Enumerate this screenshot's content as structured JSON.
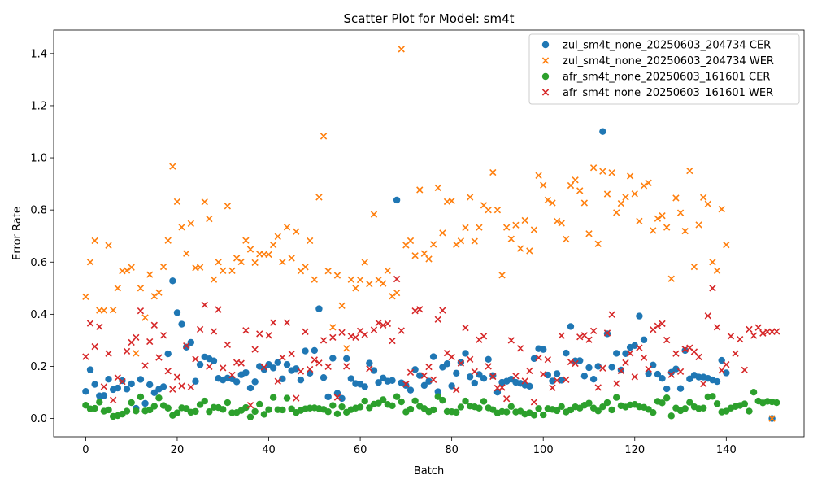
{
  "chart_data": {
    "type": "scatter",
    "title": "Scatter Plot for Model: sm4t",
    "xlabel": "Batch",
    "ylabel": "Error Rate",
    "xlim": [
      -7,
      157
    ],
    "ylim": [
      -0.07,
      1.49
    ],
    "xticks": [
      0,
      20,
      40,
      60,
      80,
      100,
      120,
      140
    ],
    "yticks": [
      0.0,
      0.2,
      0.4,
      0.6,
      0.8,
      1.0,
      1.2,
      1.4
    ],
    "grid": false,
    "legend_position": "top-right",
    "series": [
      {
        "name": "zul_sm4t_none_20250603_204734 CER",
        "color": "#1f77b4",
        "marker": "circle",
        "values": [
          0.104,
          0.187,
          0.131,
          0.087,
          0.088,
          0.151,
          0.111,
          0.117,
          0.145,
          0.113,
          0.133,
          0.039,
          0.15,
          0.058,
          0.13,
          0.099,
          0.113,
          0.122,
          0.248,
          0.528,
          0.406,
          0.362,
          0.274,
          0.292,
          0.143,
          0.207,
          0.236,
          0.229,
          0.221,
          0.154,
          0.148,
          0.155,
          0.152,
          0.141,
          0.168,
          0.176,
          0.117,
          0.141,
          0.2,
          0.188,
          0.207,
          0.194,
          0.215,
          0.152,
          0.207,
          0.184,
          0.191,
          0.148,
          0.259,
          0.174,
          0.261,
          0.421,
          0.157,
          0.083,
          0.231,
          0.097,
          0.077,
          0.23,
          0.153,
          0.134,
          0.132,
          0.122,
          0.212,
          0.184,
          0.138,
          0.155,
          0.143,
          0.146,
          0.838,
          0.137,
          0.127,
          0.109,
          0.188,
          0.165,
          0.127,
          0.143,
          0.237,
          0.103,
          0.197,
          0.21,
          0.125,
          0.174,
          0.215,
          0.25,
          0.16,
          0.136,
          0.169,
          0.154,
          0.227,
          0.165,
          0.101,
          0.139,
          0.143,
          0.151,
          0.139,
          0.135,
          0.128,
          0.124,
          0.23,
          0.268,
          0.265,
          0.167,
          0.144,
          0.172,
          0.147,
          0.251,
          0.353,
          0.221,
          0.222,
          0.163,
          0.195,
          0.151,
          0.2,
          1.101,
          0.325,
          0.197,
          0.25,
          0.186,
          0.249,
          0.273,
          0.28,
          0.393,
          0.302,
          0.172,
          0.205,
          0.17,
          0.154,
          0.114,
          0.177,
          0.19,
          0.115,
          0.261,
          0.152,
          0.166,
          0.159,
          0.159,
          0.154,
          0.148,
          0.142,
          0.223,
          0.175,
          null,
          null,
          null,
          null,
          null,
          null,
          null,
          null,
          null,
          0.0
        ]
      },
      {
        "name": "zul_sm4t_none_20250603_204734 WER",
        "color": "#ff7f0e",
        "marker": "x",
        "values": [
          0.467,
          0.6,
          0.682,
          0.415,
          0.415,
          0.664,
          0.416,
          0.5,
          0.566,
          0.568,
          0.58,
          0.25,
          0.5,
          0.387,
          0.552,
          0.469,
          0.483,
          0.582,
          0.683,
          0.967,
          0.832,
          0.734,
          0.633,
          0.748,
          0.578,
          0.58,
          0.831,
          0.766,
          0.533,
          0.6,
          0.567,
          0.815,
          0.567,
          0.615,
          0.601,
          0.683,
          0.649,
          0.598,
          0.631,
          0.63,
          0.629,
          0.666,
          0.698,
          0.6,
          0.734,
          0.615,
          0.717,
          0.566,
          0.581,
          0.682,
          0.533,
          0.849,
          1.083,
          0.566,
          0.35,
          0.549,
          0.433,
          0.269,
          0.533,
          0.5,
          0.532,
          0.599,
          0.516,
          0.783,
          0.532,
          0.518,
          0.567,
          0.469,
          0.482,
          1.417,
          0.665,
          0.682,
          0.625,
          0.877,
          0.633,
          0.612,
          0.668,
          0.885,
          0.712,
          0.832,
          0.835,
          0.667,
          0.681,
          0.732,
          0.849,
          0.68,
          0.733,
          0.818,
          0.8,
          0.944,
          0.8,
          0.55,
          0.733,
          0.689,
          0.742,
          0.652,
          0.76,
          0.643,
          0.724,
          0.932,
          0.895,
          0.838,
          0.827,
          0.757,
          0.749,
          0.688,
          0.894,
          0.915,
          0.874,
          0.827,
          0.709,
          0.962,
          0.67,
          0.948,
          0.861,
          0.943,
          0.79,
          0.825,
          0.849,
          0.93,
          0.862,
          0.757,
          0.893,
          0.904,
          0.721,
          0.767,
          0.778,
          0.733,
          0.536,
          0.846,
          0.789,
          0.719,
          0.95,
          0.582,
          0.743,
          0.848,
          0.823,
          0.6,
          0.567,
          0.803,
          0.666,
          null,
          null,
          null,
          null,
          null,
          null,
          null,
          null,
          null,
          0.0
        ]
      },
      {
        "name": "afr_sm4t_none_20250603_161601 CER",
        "color": "#2ca02c",
        "marker": "circle",
        "values": [
          0.051,
          0.037,
          0.039,
          0.063,
          0.028,
          0.033,
          0.008,
          0.011,
          0.017,
          0.028,
          0.061,
          0.029,
          0.083,
          0.029,
          0.033,
          0.047,
          0.079,
          0.05,
          0.04,
          0.012,
          0.022,
          0.041,
          0.038,
          0.024,
          0.027,
          0.053,
          0.067,
          0.026,
          0.043,
          0.042,
          0.035,
          0.061,
          0.022,
          0.023,
          0.031,
          0.042,
          0.006,
          0.027,
          0.055,
          0.016,
          0.034,
          0.081,
          0.034,
          0.033,
          0.078,
          0.037,
          0.023,
          0.031,
          0.037,
          0.04,
          0.041,
          0.038,
          0.035,
          0.026,
          0.05,
          0.018,
          0.045,
          0.024,
          0.034,
          0.04,
          0.044,
          0.067,
          0.041,
          0.055,
          0.059,
          0.072,
          0.054,
          0.049,
          0.084,
          0.064,
          0.025,
          0.036,
          0.068,
          0.047,
          0.038,
          0.026,
          0.033,
          0.084,
          0.07,
          0.027,
          0.026,
          0.024,
          0.044,
          0.067,
          0.048,
          0.045,
          0.04,
          0.066,
          0.041,
          0.034,
          0.021,
          0.027,
          0.025,
          0.046,
          0.025,
          0.028,
          0.017,
          0.022,
          0.013,
          0.038,
          0.014,
          0.038,
          0.035,
          0.03,
          0.046,
          0.025,
          0.033,
          0.045,
          0.04,
          0.051,
          0.059,
          0.04,
          0.029,
          0.045,
          0.061,
          0.033,
          0.081,
          0.049,
          0.044,
          0.052,
          0.054,
          0.045,
          0.043,
          0.035,
          0.023,
          0.066,
          0.06,
          0.079,
          0.01,
          0.04,
          0.03,
          0.038,
          0.062,
          0.045,
          0.038,
          0.04,
          0.083,
          0.085,
          0.057,
          0.025,
          0.028,
          0.04,
          0.046,
          0.05,
          0.056,
          0.028,
          0.101,
          0.067,
          0.06,
          0.066,
          0.064,
          0.061
        ]
      },
      {
        "name": "afr_sm4t_none_20250603_161601 WER",
        "color": "#d62728",
        "marker": "x",
        "values": [
          0.237,
          0.365,
          0.276,
          0.352,
          0.122,
          0.249,
          0.071,
          0.157,
          0.142,
          0.258,
          0.292,
          0.311,
          0.413,
          0.203,
          0.295,
          0.358,
          0.234,
          0.319,
          0.182,
          0.112,
          0.159,
          0.125,
          0.279,
          0.121,
          0.228,
          0.342,
          0.436,
          0.199,
          0.334,
          0.418,
          0.194,
          0.283,
          0.167,
          0.215,
          0.212,
          0.338,
          0.051,
          0.265,
          0.325,
          0.197,
          0.319,
          0.368,
          0.143,
          0.234,
          0.368,
          0.248,
          0.078,
          0.181,
          0.333,
          0.189,
          0.225,
          0.213,
          0.3,
          0.199,
          0.311,
          0.081,
          0.33,
          0.2,
          0.316,
          0.311,
          0.336,
          0.322,
          0.191,
          0.34,
          0.367,
          0.358,
          0.364,
          0.298,
          0.535,
          0.337,
          0.132,
          0.177,
          0.413,
          0.419,
          0.165,
          0.198,
          0.149,
          0.38,
          0.415,
          0.251,
          0.236,
          0.11,
          0.212,
          0.348,
          0.227,
          0.18,
          0.302,
          0.316,
          0.2,
          0.161,
          0.117,
          0.119,
          0.076,
          0.3,
          0.163,
          0.269,
          0.144,
          0.183,
          0.063,
          0.233,
          0.17,
          0.226,
          0.118,
          0.146,
          0.318,
          0.149,
          0.217,
          0.211,
          0.313,
          0.319,
          0.302,
          0.336,
          0.119,
          0.193,
          0.328,
          0.399,
          0.134,
          0.183,
          0.214,
          0.25,
          0.16,
          0.271,
          0.233,
          0.19,
          0.341,
          0.355,
          0.364,
          0.301,
          0.168,
          0.249,
          0.18,
          0.266,
          0.271,
          0.256,
          0.236,
          0.133,
          0.394,
          0.5,
          0.35,
          0.185,
          0.207,
          0.316,
          0.249,
          0.304,
          0.186,
          0.342,
          0.318,
          0.349,
          0.327,
          0.333,
          0.333,
          0.334
        ]
      }
    ]
  }
}
